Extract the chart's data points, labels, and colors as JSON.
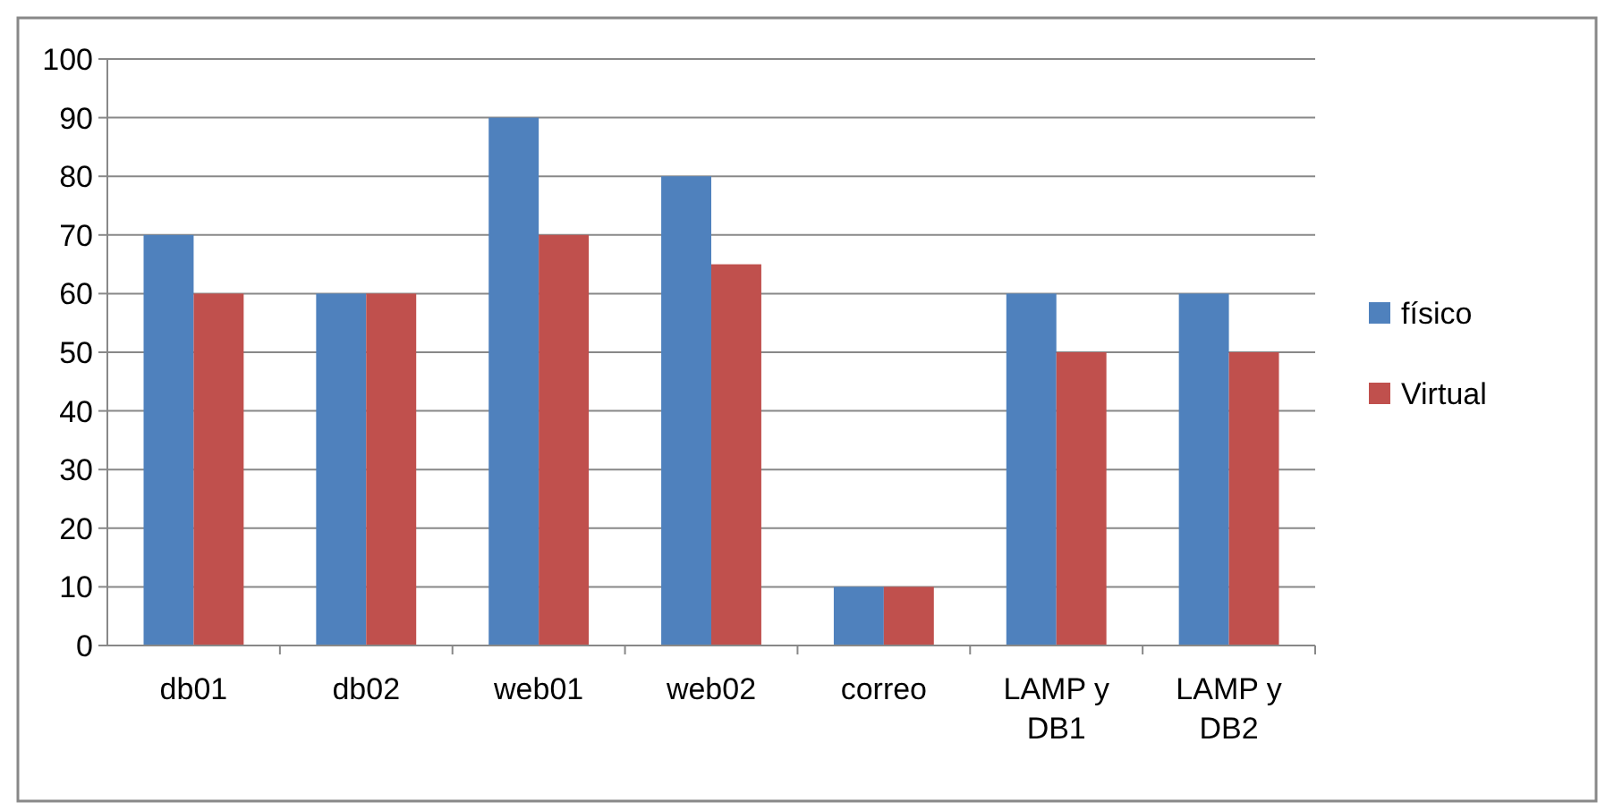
{
  "chart_data": {
    "type": "bar",
    "categories": [
      "db01",
      "db02",
      "web01",
      "web02",
      "correo",
      "LAMP y DB1",
      "LAMP y DB2"
    ],
    "series": [
      {
        "name": "físico",
        "color": "#4f81bd",
        "values": [
          70,
          60,
          90,
          80,
          10,
          60,
          60
        ]
      },
      {
        "name": "Virtual",
        "color": "#c0504d",
        "values": [
          60,
          60,
          70,
          65,
          10,
          50,
          50
        ]
      }
    ],
    "ylim": [
      0,
      100
    ],
    "yticks": [
      0,
      10,
      20,
      30,
      40,
      50,
      60,
      70,
      80,
      90,
      100
    ],
    "grid": "y",
    "legend": "right"
  }
}
